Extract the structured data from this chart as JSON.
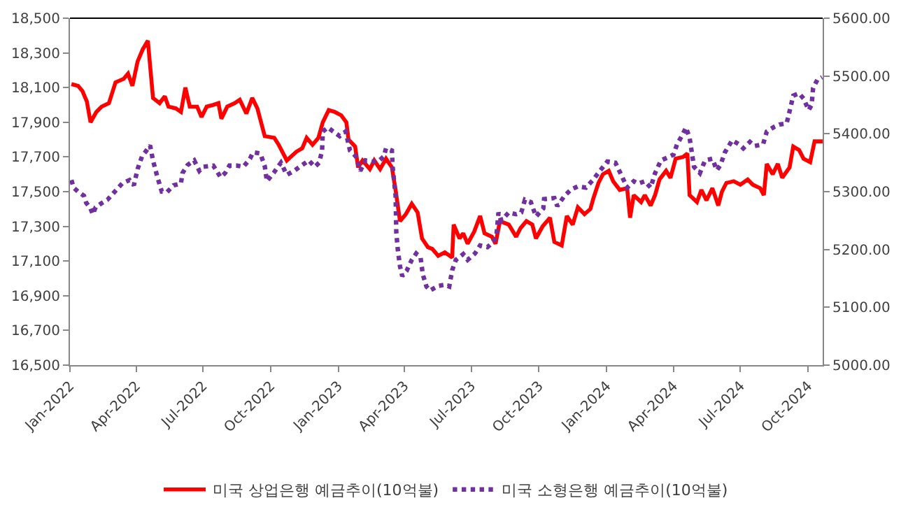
{
  "chart_data": {
    "type": "line",
    "legend": "bottom",
    "grid": false,
    "xlim": [
      "2022-01-01",
      "2024-10-21"
    ],
    "xticks": [
      {
        "value": "2022-01-01",
        "label": "Jan-2022"
      },
      {
        "value": "2022-04-01",
        "label": "Apr-2022"
      },
      {
        "value": "2022-07-01",
        "label": "Jul-2022"
      },
      {
        "value": "2022-10-01",
        "label": "Oct-2022"
      },
      {
        "value": "2023-01-01",
        "label": "Jan-2023"
      },
      {
        "value": "2023-04-01",
        "label": "Apr-2023"
      },
      {
        "value": "2023-07-01",
        "label": "Jul-2023"
      },
      {
        "value": "2023-10-01",
        "label": "Oct-2023"
      },
      {
        "value": "2024-01-01",
        "label": "Jan-2024"
      },
      {
        "value": "2024-04-01",
        "label": "Apr-2024"
      },
      {
        "value": "2024-07-01",
        "label": "Jul-2024"
      },
      {
        "value": "2024-10-01",
        "label": "Oct-2024"
      }
    ],
    "ylim": [
      16500,
      18500
    ],
    "yticks": [
      {
        "value": 16500,
        "label": "16,500"
      },
      {
        "value": 16700,
        "label": "16,700"
      },
      {
        "value": 16900,
        "label": "16,900"
      },
      {
        "value": 17100,
        "label": "17,100"
      },
      {
        "value": 17300,
        "label": "17,300"
      },
      {
        "value": 17500,
        "label": "17,500"
      },
      {
        "value": 17700,
        "label": "17,700"
      },
      {
        "value": 17900,
        "label": "17,900"
      },
      {
        "value": 18100,
        "label": "18,100"
      },
      {
        "value": 18300,
        "label": "18,300"
      },
      {
        "value": 18500,
        "label": "18,500"
      }
    ],
    "y2lim": [
      5000,
      5600
    ],
    "y2ticks": [
      {
        "value": 5000,
        "label": "5000.00"
      },
      {
        "value": 5100,
        "label": "5100.00"
      },
      {
        "value": 5200,
        "label": "5200.00"
      },
      {
        "value": 5300,
        "label": "5300.00"
      },
      {
        "value": 5400,
        "label": "5400.00"
      },
      {
        "value": 5500,
        "label": "5500.00"
      },
      {
        "value": 5600,
        "label": "5600.00"
      }
    ],
    "series": [
      {
        "name": "미국 상업은행 예금추이(10억불)",
        "color": "#ff0000",
        "line_style": "solid",
        "x": [
          "2022-01-03",
          "2022-01-12",
          "2022-01-18",
          "2022-01-24",
          "2022-01-29",
          "2022-02-06",
          "2022-02-13",
          "2022-02-23",
          "2022-03-04",
          "2022-03-15",
          "2022-03-21",
          "2022-03-27",
          "2022-04-03",
          "2022-04-10",
          "2022-04-17",
          "2022-04-24",
          "2022-05-03",
          "2022-05-10",
          "2022-05-15",
          "2022-05-25",
          "2022-06-01",
          "2022-06-07",
          "2022-06-13",
          "2022-06-23",
          "2022-06-29",
          "2022-07-06",
          "2022-07-15",
          "2022-07-22",
          "2022-07-26",
          "2022-08-03",
          "2022-08-13",
          "2022-08-20",
          "2022-08-29",
          "2022-09-06",
          "2022-09-13",
          "2022-09-23",
          "2022-10-06",
          "2022-10-12",
          "2022-10-23",
          "2022-11-05",
          "2022-11-13",
          "2022-11-19",
          "2022-11-27",
          "2022-12-05",
          "2022-12-11",
          "2022-12-19",
          "2022-12-27",
          "2023-01-05",
          "2023-01-12",
          "2023-01-15",
          "2023-01-24",
          "2023-01-28",
          "2023-02-03",
          "2023-02-13",
          "2023-02-19",
          "2023-02-27",
          "2023-03-07",
          "2023-03-15",
          "2023-03-20",
          "2023-03-26",
          "2023-04-03",
          "2023-04-11",
          "2023-04-19",
          "2023-04-25",
          "2023-05-03",
          "2023-05-09",
          "2023-05-17",
          "2023-05-26",
          "2023-06-05",
          "2023-06-07",
          "2023-06-15",
          "2023-06-20",
          "2023-06-26",
          "2023-07-05",
          "2023-07-13",
          "2023-07-19",
          "2023-07-29",
          "2023-08-03",
          "2023-08-09",
          "2023-08-21",
          "2023-08-31",
          "2023-09-06",
          "2023-09-14",
          "2023-09-22",
          "2023-09-27",
          "2023-10-06",
          "2023-10-16",
          "2023-10-22",
          "2023-11-01",
          "2023-11-08",
          "2023-11-16",
          "2023-11-23",
          "2023-12-02",
          "2023-12-10",
          "2023-12-14",
          "2023-12-21",
          "2023-12-27",
          "2024-01-04",
          "2024-01-10",
          "2024-01-19",
          "2024-01-29",
          "2024-02-02",
          "2024-02-07",
          "2024-02-17",
          "2024-02-22",
          "2024-03-01",
          "2024-03-07",
          "2024-03-13",
          "2024-03-22",
          "2024-03-28",
          "2024-04-04",
          "2024-04-14",
          "2024-04-20",
          "2024-04-23",
          "2024-05-03",
          "2024-05-09",
          "2024-05-16",
          "2024-05-24",
          "2024-06-01",
          "2024-06-06",
          "2024-06-12",
          "2024-06-22",
          "2024-07-01",
          "2024-07-11",
          "2024-07-18",
          "2024-07-28",
          "2024-08-02",
          "2024-08-06",
          "2024-08-14",
          "2024-08-21",
          "2024-08-27",
          "2024-09-06",
          "2024-09-11",
          "2024-09-19",
          "2024-09-25",
          "2024-10-04",
          "2024-10-10",
          "2024-10-21"
        ],
        "values": [
          18120,
          18110,
          18080,
          18020,
          17900,
          17960,
          17990,
          18010,
          18130,
          18150,
          18180,
          18110,
          18250,
          18320,
          18370,
          18040,
          18010,
          18050,
          17990,
          17980,
          17960,
          18100,
          17990,
          17990,
          17930,
          17990,
          18000,
          18010,
          17920,
          17990,
          18010,
          18030,
          17950,
          18040,
          17980,
          17820,
          17810,
          17770,
          17680,
          17730,
          17750,
          17810,
          17770,
          17810,
          17900,
          17970,
          17960,
          17940,
          17900,
          17800,
          17760,
          17640,
          17680,
          17630,
          17680,
          17630,
          17690,
          17640,
          17510,
          17330,
          17370,
          17430,
          17380,
          17230,
          17180,
          17170,
          17130,
          17150,
          17120,
          17310,
          17230,
          17260,
          17200,
          17270,
          17360,
          17260,
          17240,
          17200,
          17330,
          17310,
          17240,
          17290,
          17330,
          17310,
          17230,
          17300,
          17350,
          17210,
          17190,
          17360,
          17310,
          17410,
          17370,
          17400,
          17460,
          17550,
          17600,
          17620,
          17560,
          17510,
          17520,
          17350,
          17480,
          17440,
          17480,
          17420,
          17480,
          17570,
          17620,
          17580,
          17690,
          17700,
          17720,
          17480,
          17440,
          17510,
          17450,
          17520,
          17420,
          17500,
          17550,
          17560,
          17540,
          17570,
          17540,
          17520,
          17480,
          17660,
          17600,
          17660,
          17580,
          17640,
          17760,
          17740,
          17690,
          17670,
          17790,
          17790
        ]
      },
      {
        "name": "미국 소형은행 예금추이(10억불)",
        "color": "#7030a0",
        "line_style": "dotted",
        "axis": "y2",
        "x": [
          "2022-01-03",
          "2022-01-06",
          "2022-01-12",
          "2022-01-20",
          "2022-01-23",
          "2022-01-29",
          "2022-02-01",
          "2022-02-05",
          "2022-02-13",
          "2022-02-21",
          "2022-03-03",
          "2022-03-13",
          "2022-03-23",
          "2022-03-29",
          "2022-04-03",
          "2022-04-09",
          "2022-04-15",
          "2022-04-20",
          "2022-04-24",
          "2022-04-30",
          "2022-05-06",
          "2022-05-13",
          "2022-05-22",
          "2022-06-01",
          "2022-06-03",
          "2022-06-10",
          "2022-06-19",
          "2022-06-26",
          "2022-07-01",
          "2022-07-15",
          "2022-07-25",
          "2022-07-31",
          "2022-08-06",
          "2022-08-16",
          "2022-08-25",
          "2022-09-03",
          "2022-09-07",
          "2022-09-17",
          "2022-09-23",
          "2022-09-26",
          "2022-10-06",
          "2022-10-15",
          "2022-10-23",
          "2022-11-02",
          "2022-11-13",
          "2022-11-22",
          "2022-11-30",
          "2022-12-06",
          "2022-12-10",
          "2022-12-11",
          "2022-12-18",
          "2022-12-25",
          "2023-01-03",
          "2023-01-11",
          "2023-01-17",
          "2023-01-25",
          "2023-01-31",
          "2023-02-07",
          "2023-02-16",
          "2023-02-26",
          "2023-03-04",
          "2023-03-07",
          "2023-03-15",
          "2023-03-16",
          "2023-03-20",
          "2023-03-21",
          "2023-03-23",
          "2023-03-26",
          "2023-03-29",
          "2023-04-04",
          "2023-04-11",
          "2023-04-17",
          "2023-04-23",
          "2023-04-26",
          "2023-05-01",
          "2023-05-06",
          "2023-05-17",
          "2023-05-26",
          "2023-06-01",
          "2023-06-05",
          "2023-06-10",
          "2023-06-20",
          "2023-06-26",
          "2023-07-06",
          "2023-07-13",
          "2023-07-23",
          "2023-07-29",
          "2023-08-04",
          "2023-08-07",
          "2023-08-11",
          "2023-08-21",
          "2023-08-31",
          "2023-09-07",
          "2023-09-12",
          "2023-09-20",
          "2023-09-27",
          "2023-10-07",
          "2023-10-08",
          "2023-10-22",
          "2023-10-26",
          "2023-11-05",
          "2023-11-14",
          "2023-11-23",
          "2023-12-04",
          "2023-12-14",
          "2023-12-23",
          "2024-01-02",
          "2024-01-13",
          "2024-01-21",
          "2024-01-29",
          "2024-02-07",
          "2024-02-13",
          "2024-02-22",
          "2024-03-01",
          "2024-03-07",
          "2024-03-15",
          "2024-03-24",
          "2024-04-01",
          "2024-04-06",
          "2024-04-14",
          "2024-04-18",
          "2024-04-23",
          "2024-04-29",
          "2024-05-07",
          "2024-05-14",
          "2024-05-24",
          "2024-05-30",
          "2024-06-04",
          "2024-06-10",
          "2024-06-20",
          "2024-06-29",
          "2024-07-05",
          "2024-07-14",
          "2024-07-20",
          "2024-08-01",
          "2024-08-06",
          "2024-08-16",
          "2024-08-23",
          "2024-09-02",
          "2024-09-06",
          "2024-09-11",
          "2024-09-19",
          "2024-09-25",
          "2024-10-02",
          "2024-10-06",
          "2024-10-08",
          "2024-10-14",
          "2024-10-20"
        ],
        "values": [
          5320,
          5307,
          5300,
          5293,
          5281,
          5271,
          5261,
          5273,
          5280,
          5286,
          5300,
          5314,
          5320,
          5311,
          5339,
          5361,
          5371,
          5380,
          5354,
          5325,
          5300,
          5299,
          5311,
          5314,
          5332,
          5346,
          5354,
          5336,
          5343,
          5345,
          5325,
          5332,
          5345,
          5345,
          5343,
          5357,
          5368,
          5366,
          5344,
          5318,
          5334,
          5350,
          5329,
          5336,
          5346,
          5354,
          5343,
          5350,
          5371,
          5404,
          5411,
          5404,
          5396,
          5404,
          5371,
          5361,
          5336,
          5354,
          5352,
          5354,
          5361,
          5375,
          5371,
          5343,
          5293,
          5229,
          5200,
          5171,
          5154,
          5163,
          5182,
          5193,
          5186,
          5157,
          5136,
          5129,
          5137,
          5139,
          5136,
          5164,
          5182,
          5192,
          5182,
          5193,
          5207,
          5204,
          5211,
          5221,
          5264,
          5250,
          5264,
          5261,
          5264,
          5286,
          5282,
          5257,
          5271,
          5287,
          5289,
          5275,
          5293,
          5304,
          5309,
          5307,
          5321,
          5336,
          5352,
          5350,
          5329,
          5307,
          5318,
          5314,
          5318,
          5307,
          5332,
          5354,
          5359,
          5364,
          5382,
          5400,
          5411,
          5393,
          5343,
          5332,
          5354,
          5357,
          5337,
          5346,
          5368,
          5389,
          5382,
          5375,
          5386,
          5379,
          5382,
          5404,
          5412,
          5416,
          5418,
          5439,
          5466,
          5470,
          5461,
          5441,
          5450,
          5479,
          5494,
          5498
        ]
      }
    ]
  }
}
